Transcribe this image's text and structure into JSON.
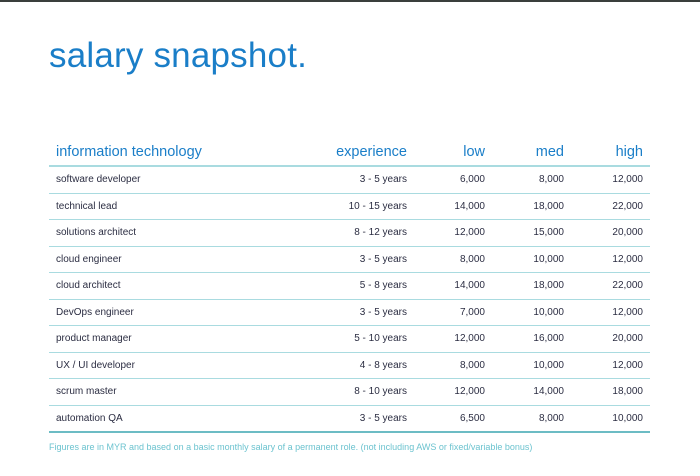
{
  "page": {
    "title": "salary snapshot.",
    "accent_color": "#1a7ec8",
    "rule_color": "#a9dbe0"
  },
  "table": {
    "headers": {
      "role": "information technology",
      "experience": "experience",
      "low": "low",
      "med": "med",
      "high": "high"
    },
    "rows": [
      {
        "role": "software developer",
        "experience": "3 - 5 years",
        "low": "6,000",
        "med": "8,000",
        "high": "12,000"
      },
      {
        "role": "technical lead",
        "experience": "10 - 15 years",
        "low": "14,000",
        "med": "18,000",
        "high": "22,000"
      },
      {
        "role": "solutions architect",
        "experience": "8 - 12 years",
        "low": "12,000",
        "med": "15,000",
        "high": "20,000"
      },
      {
        "role": "cloud engineer",
        "experience": "3 - 5 years",
        "low": "8,000",
        "med": "10,000",
        "high": "12,000"
      },
      {
        "role": "cloud architect",
        "experience": "5 - 8 years",
        "low": "14,000",
        "med": "18,000",
        "high": "22,000"
      },
      {
        "role": "DevOps engineer",
        "experience": "3 - 5 years",
        "low": "7,000",
        "med": "10,000",
        "high": "12,000"
      },
      {
        "role": "product manager",
        "experience": "5 - 10 years",
        "low": "12,000",
        "med": "16,000",
        "high": "20,000"
      },
      {
        "role": "UX / UI developer",
        "experience": "4 - 8 years",
        "low": "8,000",
        "med": "10,000",
        "high": "12,000"
      },
      {
        "role": "scrum master",
        "experience": "8 - 10 years",
        "low": "12,000",
        "med": "14,000",
        "high": "18,000"
      },
      {
        "role": "automation QA",
        "experience": "3 - 5 years",
        "low": "6,500",
        "med": "8,000",
        "high": "10,000"
      }
    ]
  },
  "footnote": "Figures are in MYR and based on a basic monthly salary of a permanent role. (not including AWS or fixed/variable bonus)"
}
